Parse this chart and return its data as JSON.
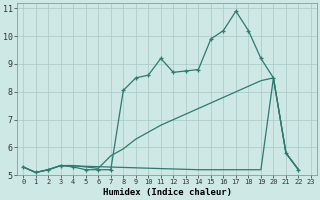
{
  "xlabel": "Humidex (Indice chaleur)",
  "background_color": "#cde8e5",
  "grid_color": "#a8c8c4",
  "line_color": "#2d7a70",
  "xlim": [
    -0.5,
    23.5
  ],
  "ylim": [
    5,
    11.2
  ],
  "yticks": [
    5,
    6,
    7,
    8,
    9,
    10,
    11
  ],
  "xticks": [
    0,
    1,
    2,
    3,
    4,
    5,
    6,
    7,
    8,
    9,
    10,
    11,
    12,
    13,
    14,
    15,
    16,
    17,
    18,
    19,
    20,
    21,
    22,
    23
  ],
  "series1_x": [
    0,
    1,
    2,
    3,
    4,
    5,
    6,
    7,
    8,
    9,
    10,
    11,
    12,
    13,
    14,
    15,
    16,
    17,
    18,
    19,
    20,
    21,
    22
  ],
  "series1_y": [
    5.3,
    5.1,
    5.2,
    5.35,
    5.3,
    5.2,
    5.2,
    5.2,
    8.05,
    8.5,
    8.6,
    9.2,
    8.7,
    8.75,
    8.8,
    9.9,
    10.2,
    10.9,
    10.2,
    9.2,
    8.5,
    5.8,
    5.2
  ],
  "series2_x": [
    0,
    1,
    2,
    3,
    4,
    5,
    6,
    7,
    8,
    9,
    10,
    11,
    12,
    13,
    14,
    15,
    16,
    17,
    18,
    19,
    20,
    21,
    22
  ],
  "series2_y": [
    5.3,
    5.1,
    5.2,
    5.35,
    5.35,
    5.3,
    5.25,
    5.7,
    5.95,
    6.3,
    6.55,
    6.8,
    7.0,
    7.2,
    7.4,
    7.6,
    7.8,
    8.0,
    8.2,
    8.4,
    8.5,
    5.8,
    5.2
  ],
  "series3_x": [
    0,
    1,
    2,
    3,
    14,
    19,
    20,
    21,
    22
  ],
  "series3_y": [
    5.3,
    5.1,
    5.2,
    5.35,
    5.2,
    5.2,
    8.5,
    5.8,
    5.2
  ]
}
